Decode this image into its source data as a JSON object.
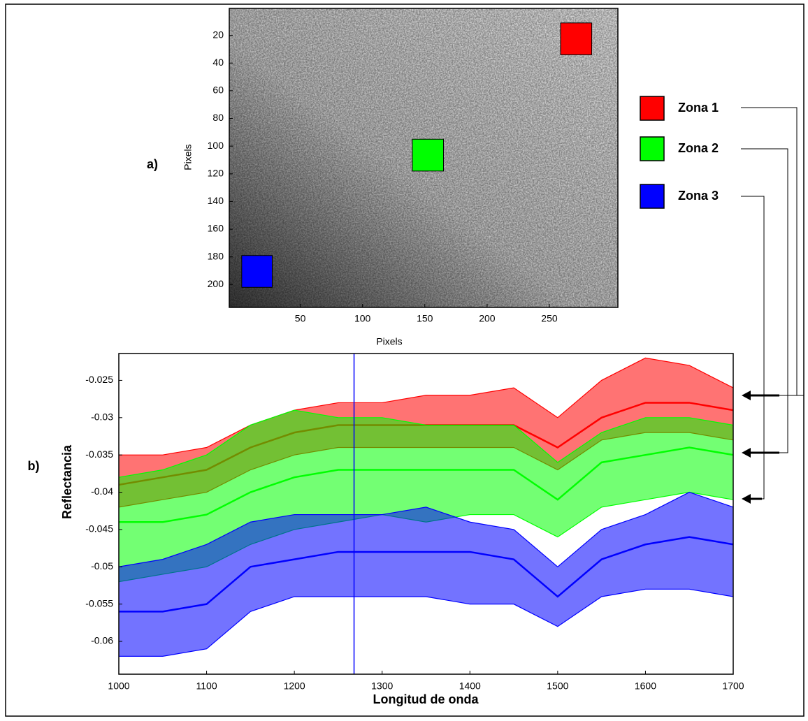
{
  "chart_data": [
    {
      "type": "image",
      "panel_label": "a)",
      "xlabel": "Pixels",
      "ylabel": "Pixels",
      "xlim": [
        -7,
        305
      ],
      "ylim": [
        0.5,
        216.5
      ],
      "y_inverted": true,
      "xticks": [
        50,
        100,
        150,
        200,
        250
      ],
      "yticks": [
        20,
        40,
        60,
        80,
        100,
        120,
        140,
        160,
        180,
        200
      ],
      "zones": [
        {
          "name": "Zona 1",
          "color": "#ff0000",
          "x": [
            259,
            284
          ],
          "y": [
            11,
            34
          ]
        },
        {
          "name": "Zona 2",
          "color": "#00ff00",
          "x": [
            140,
            165
          ],
          "y": [
            95,
            118
          ]
        },
        {
          "name": "Zona 3",
          "color": "#0000ff",
          "x": [
            3,
            27.5
          ],
          "y": [
            179,
            202
          ]
        }
      ]
    },
    {
      "type": "line",
      "panel_label": "b)",
      "xlabel": "Longitud de onda",
      "ylabel": "Reflectancia",
      "x": [
        1000,
        1050,
        1100,
        1150,
        1200,
        1250,
        1300,
        1350,
        1400,
        1450,
        1500,
        1550,
        1600,
        1650,
        1700
      ],
      "xlim": [
        1000,
        1700
      ],
      "xticks": [
        1000,
        1100,
        1200,
        1300,
        1400,
        1500,
        1600,
        1700
      ],
      "ylim": [
        -0.0644,
        -0.0214
      ],
      "yticks": [
        -0.025,
        -0.03,
        -0.035,
        -0.04,
        -0.045,
        -0.05,
        -0.055,
        -0.06
      ],
      "marker_x": 1268,
      "marker_color": "#0000ff",
      "series": [
        {
          "color": "#ff0000",
          "values": [
            -0.039,
            -0.038,
            -0.037,
            -0.034,
            -0.032,
            -0.031,
            -0.031,
            -0.031,
            -0.031,
            -0.031,
            -0.034,
            -0.03,
            -0.028,
            -0.028,
            -0.029
          ],
          "upper": [
            -0.035,
            -0.035,
            -0.034,
            -0.031,
            -0.029,
            -0.028,
            -0.028,
            -0.027,
            -0.027,
            -0.026,
            -0.03,
            -0.025,
            -0.022,
            -0.023,
            -0.026
          ],
          "lower": [
            -0.042,
            -0.041,
            -0.04,
            -0.037,
            -0.035,
            -0.034,
            -0.034,
            -0.034,
            -0.034,
            -0.034,
            -0.037,
            -0.033,
            -0.032,
            -0.032,
            -0.033
          ]
        },
        {
          "color": "#00ff00",
          "values": [
            -0.044,
            -0.044,
            -0.043,
            -0.04,
            -0.038,
            -0.037,
            -0.037,
            -0.037,
            -0.037,
            -0.037,
            -0.041,
            -0.036,
            -0.035,
            -0.034,
            -0.035
          ],
          "upper": [
            -0.038,
            -0.037,
            -0.035,
            -0.031,
            -0.029,
            -0.03,
            -0.03,
            -0.031,
            -0.031,
            -0.031,
            -0.036,
            -0.032,
            -0.03,
            -0.03,
            -0.031
          ],
          "lower": [
            -0.052,
            -0.051,
            -0.05,
            -0.047,
            -0.045,
            -0.044,
            -0.043,
            -0.044,
            -0.043,
            -0.043,
            -0.046,
            -0.042,
            -0.041,
            -0.04,
            -0.041
          ]
        },
        {
          "color": "#0000ff",
          "values": [
            -0.056,
            -0.056,
            -0.055,
            -0.05,
            -0.049,
            -0.048,
            -0.048,
            -0.048,
            -0.048,
            -0.049,
            -0.054,
            -0.049,
            -0.047,
            -0.046,
            -0.047
          ],
          "upper": [
            -0.05,
            -0.049,
            -0.047,
            -0.044,
            -0.043,
            -0.043,
            -0.043,
            -0.042,
            -0.044,
            -0.045,
            -0.05,
            -0.045,
            -0.043,
            -0.04,
            -0.042
          ],
          "lower": [
            -0.062,
            -0.062,
            -0.061,
            -0.056,
            -0.054,
            -0.054,
            -0.054,
            -0.054,
            -0.055,
            -0.055,
            -0.058,
            -0.054,
            -0.053,
            -0.053,
            -0.054
          ]
        }
      ]
    }
  ]
}
